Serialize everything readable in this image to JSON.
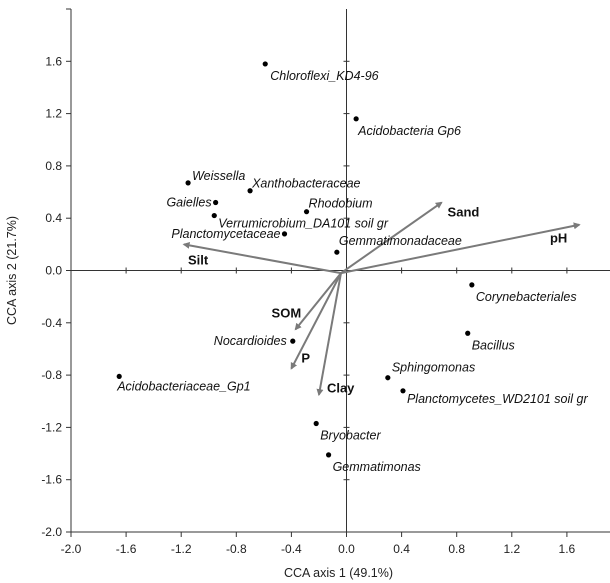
{
  "chart_data": {
    "type": "scatter",
    "title": "",
    "xlabel": "CCA axis 1 (49.1%)",
    "ylabel": "CCA axis 2 (21.7%)",
    "xlim": [
      -2.0,
      2.0
    ],
    "ylim": [
      -2.0,
      2.0
    ],
    "x_ticks": [
      "-2.0",
      "-1.6",
      "-1.2",
      "-0.8",
      "-0.4",
      "0.0",
      "0.4",
      "0.8",
      "1.2",
      "1.6"
    ],
    "y_ticks": [
      "1.6",
      "1.2",
      "0.8",
      "0.4",
      "0.0",
      "-0.4",
      "-0.8",
      "-1.2",
      "-1.6",
      "-2.0"
    ],
    "x_tick_values": [
      -2.0,
      -1.6,
      -1.2,
      -0.8,
      -0.4,
      0.0,
      0.4,
      0.8,
      1.2,
      1.6
    ],
    "y_tick_values": [
      1.6,
      1.2,
      0.8,
      0.4,
      0.0,
      -0.4,
      -0.8,
      -1.2,
      -1.6,
      -2.0
    ],
    "grid": false,
    "origin": [
      -0.04,
      -0.02
    ],
    "points": [
      {
        "label": "Chloroflexi_KD4-96",
        "x": -0.59,
        "y": 1.58
      },
      {
        "label": "Acidobacteria Gp6",
        "x": 0.07,
        "y": 1.16
      },
      {
        "label": "Weissella",
        "x": -1.15,
        "y": 0.67
      },
      {
        "label": "Xanthobacteraceae",
        "x": -0.7,
        "y": 0.61
      },
      {
        "label": "Gaielles",
        "x": -0.95,
        "y": 0.52
      },
      {
        "label": "Rhodobium",
        "x": -0.29,
        "y": 0.45
      },
      {
        "label": "Verrumicrobium_DA101 soil gr",
        "x": -0.96,
        "y": 0.42
      },
      {
        "label": "Planctomycetaceae",
        "x": -0.45,
        "y": 0.28
      },
      {
        "label": "Gemmatimonadaceae",
        "x": -0.07,
        "y": 0.14
      },
      {
        "label": "Corynebacteriales",
        "x": 0.91,
        "y": -0.11
      },
      {
        "label": "Nocardioides",
        "x": -0.39,
        "y": -0.54
      },
      {
        "label": "Bacillus",
        "x": 0.88,
        "y": -0.48
      },
      {
        "label": "Sphingomonas",
        "x": 0.3,
        "y": -0.82
      },
      {
        "label": "Acidobacteriaceae_Gp1",
        "x": -1.65,
        "y": -0.81
      },
      {
        "label": "Planctomycetes_WD2101 soil gr",
        "x": 0.41,
        "y": -0.92
      },
      {
        "label": "Bryobacter",
        "x": -0.22,
        "y": -1.17
      },
      {
        "label": "Gemmatimonas",
        "x": -0.13,
        "y": -1.41
      }
    ],
    "vectors": [
      {
        "name": "Sand",
        "x": 0.69,
        "y": 0.52
      },
      {
        "name": "pH",
        "x": 1.69,
        "y": 0.35
      },
      {
        "name": "Silt",
        "x": -1.18,
        "y": 0.2
      },
      {
        "name": "SOM",
        "x": -0.37,
        "y": -0.45
      },
      {
        "name": "P",
        "x": -0.4,
        "y": -0.75
      },
      {
        "name": "Clay",
        "x": -0.2,
        "y": -0.95
      }
    ]
  }
}
